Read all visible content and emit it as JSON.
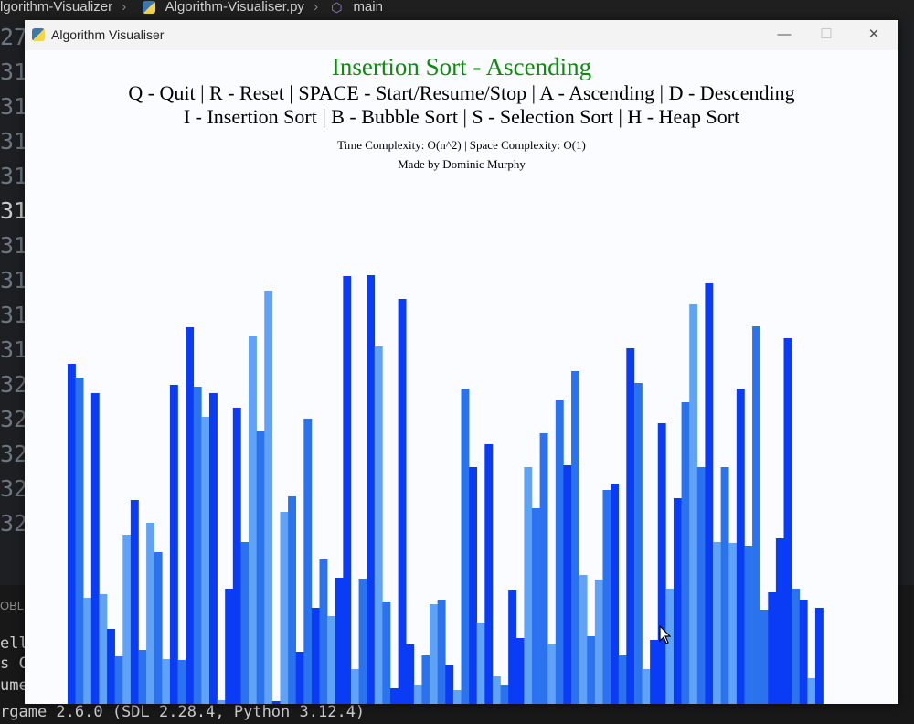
{
  "editor": {
    "breadcrumb_folder": "lgorithm-Visualizer",
    "breadcrumb_file": "Algorithm-Visualiser.py",
    "breadcrumb_symbol": "main",
    "gutter_lines": [
      "27",
      "31",
      "31",
      "31",
      "31",
      "31",
      "31",
      "31",
      "31",
      "31",
      "32",
      "32",
      "32",
      "32",
      "32"
    ],
    "panel_tab": "OBLE",
    "terminal_lines": [
      "ello",
      "s C",
      "umer",
      "rgame 2.6.0 (SDL 2.28.4, Python 3.12.4)"
    ]
  },
  "window": {
    "title": "Algorithm Visualiser",
    "minimize": "—",
    "maximize": "☐",
    "close": "✕"
  },
  "header": {
    "title": "Insertion Sort - Ascending",
    "controls_line1": "Q - Quit | R - Reset | SPACE - Start/Resume/Stop | A - Ascending | D - Descending",
    "controls_line2": "I - Insertion Sort | B - Bubble Sort | S - Selection Sort | H - Heap Sort",
    "complexity": "Time Complexity: O(n^2) | Space Complexity: O(1)",
    "credit": "Made by Dominic Murphy"
  },
  "colors": {
    "title": "#0f8a0f",
    "bar_dark": "#0a3cf5",
    "bar_mid": "#2a72ee",
    "bar_light": "#5fa2f6"
  },
  "chart_data": {
    "type": "bar",
    "values": [
      372,
      357,
      116,
      340,
      120,
      82,
      52,
      185,
      223,
      59,
      198,
      166,
      49,
      349,
      48,
      412,
      347,
      314,
      340,
      4,
      126,
      324,
      177,
      402,
      298,
      452,
      3,
      210,
      227,
      57,
      312,
      105,
      158,
      96,
      138,
      468,
      38,
      137,
      469,
      391,
      112,
      17,
      443,
      65,
      21,
      53,
      109,
      114,
      42,
      15,
      345,
      259,
      89,
      284,
      30,
      21,
      125,
      72,
      259,
      214,
      296,
      65,
      332,
      261,
      364,
      141,
      74,
      136,
      234,
      241,
      53,
      389,
      351,
      38,
      70,
      307,
      126,
      225,
      330,
      437,
      259,
      460,
      177,
      259,
      176,
      345,
      173,
      413,
      103,
      122,
      181,
      400,
      126,
      114,
      28,
      105
    ],
    "color_levels": [
      0,
      1,
      2,
      0,
      2,
      0,
      1,
      2,
      0,
      1,
      2,
      1,
      2,
      0,
      1,
      0,
      1,
      2,
      0,
      2,
      0,
      0,
      1,
      2,
      1,
      2,
      0,
      2,
      1,
      0,
      1,
      0,
      1,
      2,
      0,
      0,
      2,
      1,
      0,
      2,
      1,
      0,
      0,
      0,
      2,
      1,
      2,
      1,
      0,
      2,
      1,
      0,
      2,
      0,
      2,
      1,
      0,
      0,
      2,
      1,
      1,
      2,
      1,
      0,
      1,
      2,
      1,
      2,
      1,
      0,
      1,
      0,
      1,
      2,
      0,
      0,
      2,
      0,
      1,
      2,
      1,
      0,
      2,
      1,
      2,
      0,
      1,
      1,
      1,
      0,
      0,
      0,
      1,
      0,
      2,
      0
    ]
  }
}
